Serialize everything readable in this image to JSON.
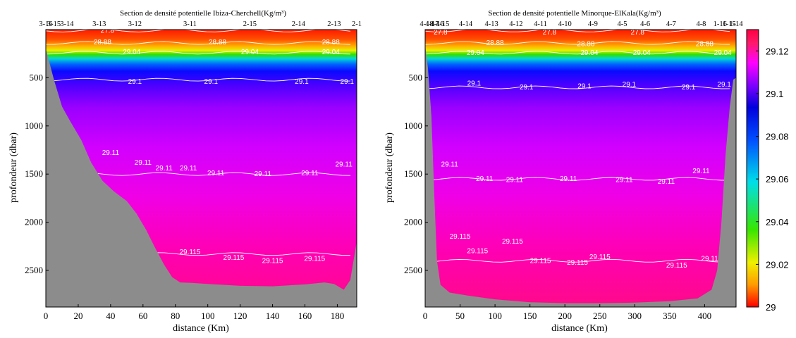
{
  "chart_data": [
    {
      "type": "heatmap",
      "title": "Section de densité potentielle Ibiza-Cherchell(Kg/m³)",
      "xlabel": "distance (Km)",
      "ylabel": "profondeur (dbar)",
      "xlim": [
        0,
        192
      ],
      "ylim": [
        2880,
        0
      ],
      "xticks": [
        0,
        20,
        40,
        60,
        80,
        100,
        120,
        140,
        160,
        180
      ],
      "yticks": [
        500,
        1000,
        1500,
        2000,
        2500
      ],
      "stations": [
        {
          "label": "3-16",
          "x": 0
        },
        {
          "label": "3-15",
          "x": 5
        },
        {
          "label": "3-14",
          "x": 13
        },
        {
          "label": "3-13",
          "x": 33
        },
        {
          "label": "3-12",
          "x": 55
        },
        {
          "label": "3-11",
          "x": 89
        },
        {
          "label": "2-15",
          "x": 126
        },
        {
          "label": "2-14",
          "x": 156
        },
        {
          "label": "2-13",
          "x": 178
        },
        {
          "label": "2-1",
          "x": 192
        }
      ],
      "isopycnals": [
        {
          "value": 27.8,
          "depth_dbar": 10
        },
        {
          "value": 28.88,
          "depth_dbar": 140
        },
        {
          "value": 29.04,
          "depth_dbar": 240
        },
        {
          "value": 29.1,
          "depth_dbar": 520
        },
        {
          "value": 29.11,
          "depth_dbar": 1500
        },
        {
          "value": 29.115,
          "depth_dbar": 2330
        }
      ],
      "contour_labels": [
        {
          "text": "27.8",
          "x": 38,
          "y": 10
        },
        {
          "text": "28.88",
          "x": 35,
          "y": 130
        },
        {
          "text": "28.88",
          "x": 106,
          "y": 130
        },
        {
          "text": "28.88",
          "x": 176,
          "y": 130
        },
        {
          "text": "29.04",
          "x": 53,
          "y": 235
        },
        {
          "text": "29.04",
          "x": 126,
          "y": 235
        },
        {
          "text": "29.04",
          "x": 176,
          "y": 235
        },
        {
          "text": "29.1",
          "x": 55,
          "y": 540
        },
        {
          "text": "29.1",
          "x": 102,
          "y": 540
        },
        {
          "text": "29.1",
          "x": 158,
          "y": 540
        },
        {
          "text": "29.1",
          "x": 186,
          "y": 540
        },
        {
          "text": "29.11",
          "x": 40,
          "y": 1280
        },
        {
          "text": "29.11",
          "x": 60,
          "y": 1380
        },
        {
          "text": "29.11",
          "x": 73,
          "y": 1440
        },
        {
          "text": "29.11",
          "x": 88,
          "y": 1440
        },
        {
          "text": "29.11",
          "x": 105,
          "y": 1490
        },
        {
          "text": "29.11",
          "x": 134,
          "y": 1500
        },
        {
          "text": "29.11",
          "x": 163,
          "y": 1490
        },
        {
          "text": "29.11",
          "x": 184,
          "y": 1400
        },
        {
          "text": "29.115",
          "x": 89,
          "y": 2310
        },
        {
          "text": "29.115",
          "x": 116,
          "y": 2370
        },
        {
          "text": "29.115",
          "x": 140,
          "y": 2400
        },
        {
          "text": "29.115",
          "x": 166,
          "y": 2380
        }
      ],
      "seafloor": [
        {
          "x": 0,
          "y": 200
        },
        {
          "x": 5,
          "y": 520
        },
        {
          "x": 10,
          "y": 800
        },
        {
          "x": 15,
          "y": 950
        },
        {
          "x": 22,
          "y": 1150
        },
        {
          "x": 28,
          "y": 1380
        },
        {
          "x": 35,
          "y": 1570
        },
        {
          "x": 42,
          "y": 1680
        },
        {
          "x": 50,
          "y": 1780
        },
        {
          "x": 56,
          "y": 1910
        },
        {
          "x": 62,
          "y": 2080
        },
        {
          "x": 67,
          "y": 2250
        },
        {
          "x": 73,
          "y": 2440
        },
        {
          "x": 78,
          "y": 2570
        },
        {
          "x": 83,
          "y": 2625
        },
        {
          "x": 90,
          "y": 2630
        },
        {
          "x": 100,
          "y": 2640
        },
        {
          "x": 120,
          "y": 2660
        },
        {
          "x": 140,
          "y": 2665
        },
        {
          "x": 160,
          "y": 2645
        },
        {
          "x": 172,
          "y": 2625
        },
        {
          "x": 178,
          "y": 2640
        },
        {
          "x": 184,
          "y": 2700
        },
        {
          "x": 188,
          "y": 2600
        },
        {
          "x": 190,
          "y": 2400
        },
        {
          "x": 192,
          "y": 2200
        }
      ]
    },
    {
      "type": "heatmap",
      "title": "Section de densité potentielle Minorque-ElKala(Kg/m³)",
      "xlabel": "distance (Km)",
      "ylabel": "profondeur (dbar)",
      "xlim": [
        0,
        445
      ],
      "ylim": [
        2880,
        0
      ],
      "xticks": [
        0,
        50,
        100,
        150,
        200,
        250,
        300,
        350,
        400
      ],
      "yticks": [
        500,
        1000,
        1500,
        2000,
        2500
      ],
      "stations": [
        {
          "label": "4-18",
          "x": 2
        },
        {
          "label": "4-17",
          "x": 10
        },
        {
          "label": "4-16",
          "x": 17
        },
        {
          "label": "4-15",
          "x": 25
        },
        {
          "label": "4-14",
          "x": 58
        },
        {
          "label": "4-13",
          "x": 95
        },
        {
          "label": "4-12",
          "x": 130
        },
        {
          "label": "4-11",
          "x": 165
        },
        {
          "label": "4-10",
          "x": 200
        },
        {
          "label": "4-9",
          "x": 240
        },
        {
          "label": "4-5",
          "x": 282
        },
        {
          "label": "4-6",
          "x": 315
        },
        {
          "label": "4-7",
          "x": 352
        },
        {
          "label": "4-8",
          "x": 395
        },
        {
          "label": "1-16",
          "x": 422
        },
        {
          "label": "1-15",
          "x": 435
        },
        {
          "label": "1-14",
          "x": 445
        }
      ],
      "isopycnals": [
        {
          "value": 27.8,
          "depth_dbar": 10
        },
        {
          "value": 28.88,
          "depth_dbar": 140
        },
        {
          "value": 29.04,
          "depth_dbar": 240
        },
        {
          "value": 29.1,
          "depth_dbar": 600
        },
        {
          "value": 29.11,
          "depth_dbar": 1550
        },
        {
          "value": 29.115,
          "depth_dbar": 2400
        }
      ],
      "contour_labels": [
        {
          "text": "27.8",
          "x": 22,
          "y": 30
        },
        {
          "text": "27.8",
          "x": 178,
          "y": 30
        },
        {
          "text": "27.8",
          "x": 304,
          "y": 30
        },
        {
          "text": "28.88",
          "x": 100,
          "y": 140
        },
        {
          "text": "28.88",
          "x": 230,
          "y": 150
        },
        {
          "text": "28.88",
          "x": 400,
          "y": 150
        },
        {
          "text": "29.04",
          "x": 72,
          "y": 240
        },
        {
          "text": "29.04",
          "x": 235,
          "y": 240
        },
        {
          "text": "29.04",
          "x": 310,
          "y": 240
        },
        {
          "text": "29.04",
          "x": 426,
          "y": 240
        },
        {
          "text": "29.1",
          "x": 70,
          "y": 560
        },
        {
          "text": "29.1",
          "x": 145,
          "y": 600
        },
        {
          "text": "29.1",
          "x": 228,
          "y": 590
        },
        {
          "text": "29.1",
          "x": 292,
          "y": 570
        },
        {
          "text": "29.1",
          "x": 377,
          "y": 600
        },
        {
          "text": "29.1",
          "x": 428,
          "y": 570
        },
        {
          "text": "29.11",
          "x": 35,
          "y": 1400
        },
        {
          "text": "29.11",
          "x": 85,
          "y": 1550
        },
        {
          "text": "29.11",
          "x": 128,
          "y": 1560
        },
        {
          "text": "29.11",
          "x": 205,
          "y": 1550
        },
        {
          "text": "29.11",
          "x": 285,
          "y": 1560
        },
        {
          "text": "29.11",
          "x": 345,
          "y": 1580
        },
        {
          "text": "29.11",
          "x": 395,
          "y": 1470
        },
        {
          "text": "29.115",
          "x": 50,
          "y": 2150
        },
        {
          "text": "29.115",
          "x": 75,
          "y": 2300
        },
        {
          "text": "29.115",
          "x": 125,
          "y": 2200
        },
        {
          "text": "29.115",
          "x": 165,
          "y": 2400
        },
        {
          "text": "29.115",
          "x": 218,
          "y": 2420
        },
        {
          "text": "29.115",
          "x": 250,
          "y": 2360
        },
        {
          "text": "29.115",
          "x": 360,
          "y": 2450
        },
        {
          "text": "29.115",
          "x": 410,
          "y": 2380
        }
      ],
      "seafloor": [
        {
          "x": 0,
          "y": 160
        },
        {
          "x": 4,
          "y": 400
        },
        {
          "x": 9,
          "y": 900
        },
        {
          "x": 13,
          "y": 1700
        },
        {
          "x": 17,
          "y": 2400
        },
        {
          "x": 22,
          "y": 2650
        },
        {
          "x": 35,
          "y": 2730
        },
        {
          "x": 60,
          "y": 2760
        },
        {
          "x": 100,
          "y": 2800
        },
        {
          "x": 150,
          "y": 2830
        },
        {
          "x": 200,
          "y": 2840
        },
        {
          "x": 250,
          "y": 2840
        },
        {
          "x": 300,
          "y": 2835
        },
        {
          "x": 350,
          "y": 2820
        },
        {
          "x": 390,
          "y": 2790
        },
        {
          "x": 410,
          "y": 2700
        },
        {
          "x": 418,
          "y": 2500
        },
        {
          "x": 424,
          "y": 2000
        },
        {
          "x": 430,
          "y": 1300
        },
        {
          "x": 436,
          "y": 800
        },
        {
          "x": 441,
          "y": 520
        },
        {
          "x": 445,
          "y": 500
        }
      ]
    }
  ],
  "colorbar": {
    "min": 29.0,
    "max": 29.13,
    "ticks": [
      "29",
      "29.02",
      "29.04",
      "29.06",
      "29.08",
      "29.1",
      "29.12"
    ],
    "tick_values": [
      29.0,
      29.02,
      29.04,
      29.06,
      29.08,
      29.1,
      29.12
    ],
    "colors": [
      "#ff0000",
      "#ff9a00",
      "#f0f000",
      "#36e600",
      "#00dfe8",
      "#0050ff",
      "#0000dc",
      "#8000ff",
      "#ff00ff",
      "#ff1a6a",
      "#ff0040"
    ]
  }
}
